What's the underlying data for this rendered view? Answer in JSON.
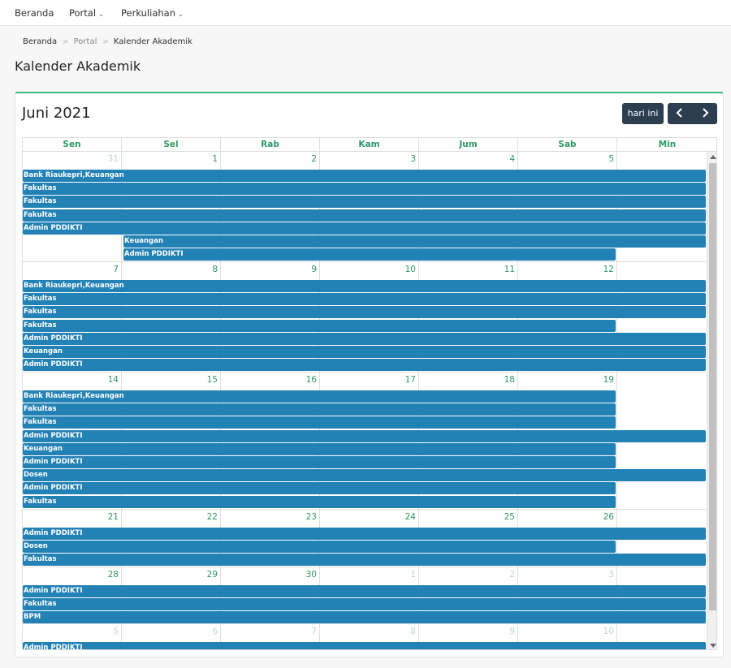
{
  "nav": {
    "items": [
      {
        "label": "Beranda",
        "has_dropdown": false
      },
      {
        "label": "Portal",
        "has_dropdown": true
      },
      {
        "label": "Perkuliahan",
        "has_dropdown": true
      }
    ]
  },
  "breadcrumb": {
    "items": [
      "Beranda",
      "Portal",
      "Kalender Akademik"
    ]
  },
  "page": {
    "title": "Kalender Akademik"
  },
  "calendar": {
    "month_title": "Juni 2021",
    "today_label": "hari ini",
    "weekdays": [
      "Sen",
      "Sel",
      "Rab",
      "Kam",
      "Jum",
      "Sab",
      "Min"
    ],
    "weeks": [
      {
        "days": [
          {
            "n": "31",
            "other": true
          },
          {
            "n": "1"
          },
          {
            "n": "2"
          },
          {
            "n": "3"
          },
          {
            "n": "4"
          },
          {
            "n": "5"
          },
          {
            "n": ""
          }
        ],
        "events": [
          {
            "label": "Bank Riaukepri,Keuangan",
            "start": 0,
            "end": 7
          },
          {
            "label": "Fakultas",
            "start": 0,
            "end": 7
          },
          {
            "label": "Fakultas",
            "start": 0,
            "end": 7
          },
          {
            "label": "Fakultas",
            "start": 0,
            "end": 7
          },
          {
            "label": "Admin PDDIKTI",
            "start": 0,
            "end": 7
          },
          {
            "label": "Keuangan",
            "start": 1,
            "end": 7
          },
          {
            "label": "Admin PDDIKTI",
            "start": 1,
            "end": 6
          }
        ]
      },
      {
        "days": [
          {
            "n": "7"
          },
          {
            "n": "8"
          },
          {
            "n": "9"
          },
          {
            "n": "10"
          },
          {
            "n": "11"
          },
          {
            "n": "12"
          },
          {
            "n": ""
          }
        ],
        "events": [
          {
            "label": "Bank Riaukepri,Keuangan",
            "start": 0,
            "end": 7
          },
          {
            "label": "Fakultas",
            "start": 0,
            "end": 7
          },
          {
            "label": "Fakultas",
            "start": 0,
            "end": 7
          },
          {
            "label": "Fakultas",
            "start": 0,
            "end": 6
          },
          {
            "label": "Admin PDDIKTI",
            "start": 0,
            "end": 7
          },
          {
            "label": "Keuangan",
            "start": 0,
            "end": 7
          },
          {
            "label": "Admin PDDIKTI",
            "start": 0,
            "end": 7
          }
        ]
      },
      {
        "days": [
          {
            "n": "14"
          },
          {
            "n": "15"
          },
          {
            "n": "16"
          },
          {
            "n": "17"
          },
          {
            "n": "18"
          },
          {
            "n": "19"
          },
          {
            "n": ""
          }
        ],
        "events": [
          {
            "label": "Bank Riaukepri,Keuangan",
            "start": 0,
            "end": 6
          },
          {
            "label": "Fakultas",
            "start": 0,
            "end": 6
          },
          {
            "label": "Fakultas",
            "start": 0,
            "end": 6
          },
          {
            "label": "Admin PDDIKTI",
            "start": 0,
            "end": 7
          },
          {
            "label": "Keuangan",
            "start": 0,
            "end": 6
          },
          {
            "label": "Admin PDDIKTI",
            "start": 0,
            "end": 6
          },
          {
            "label": "Dosen",
            "start": 0,
            "end": 7
          },
          {
            "label": "Admin PDDIKTI",
            "start": 0,
            "end": 6
          },
          {
            "label": "Fakultas",
            "start": 0,
            "end": 6
          }
        ]
      },
      {
        "days": [
          {
            "n": "21"
          },
          {
            "n": "22"
          },
          {
            "n": "23"
          },
          {
            "n": "24"
          },
          {
            "n": "25"
          },
          {
            "n": "26"
          },
          {
            "n": ""
          }
        ],
        "events": [
          {
            "label": "Admin PDDIKTI",
            "start": 0,
            "end": 7
          },
          {
            "label": "Dosen",
            "start": 0,
            "end": 6
          },
          {
            "label": "Fakultas",
            "start": 0,
            "end": 7
          }
        ]
      },
      {
        "days": [
          {
            "n": "28"
          },
          {
            "n": "29"
          },
          {
            "n": "30"
          },
          {
            "n": "1",
            "other": true
          },
          {
            "n": "2",
            "other": true
          },
          {
            "n": "3",
            "other": true
          },
          {
            "n": ""
          }
        ],
        "events": [
          {
            "label": "Admin PDDIKTI",
            "start": 0,
            "end": 7
          },
          {
            "label": "Fakultas",
            "start": 0,
            "end": 7
          },
          {
            "label": "BPM",
            "start": 0,
            "end": 7
          }
        ]
      },
      {
        "days": [
          {
            "n": "5",
            "other": true
          },
          {
            "n": "6",
            "other": true
          },
          {
            "n": "7",
            "other": true
          },
          {
            "n": "8",
            "other": true
          },
          {
            "n": "9",
            "other": true
          },
          {
            "n": "10",
            "other": true
          },
          {
            "n": ""
          }
        ],
        "events": [
          {
            "label": "Admin PDDIKTI",
            "start": 0,
            "end": 7
          }
        ]
      }
    ]
  },
  "colors": {
    "accent": "#3bb77e",
    "event": "#2281b5",
    "dark_button": "#2c3e50",
    "day_number": "#2e9b63"
  }
}
